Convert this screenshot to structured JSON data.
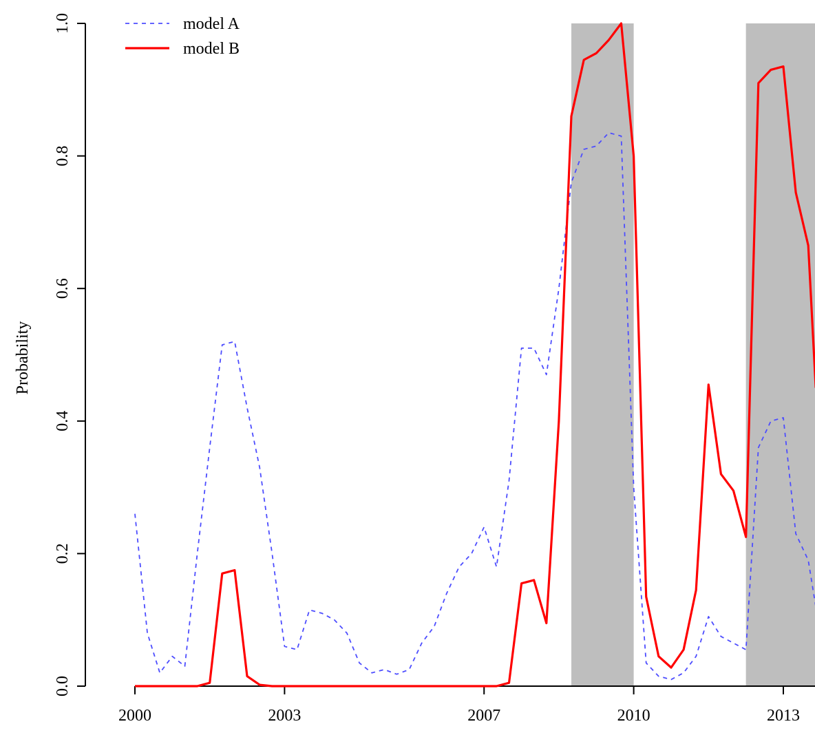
{
  "chart_data": {
    "type": "line",
    "ylabel": "Probability",
    "xlim": [
      2000,
      2013.65
    ],
    "ylim": [
      0,
      1
    ],
    "x_ticks": [
      {
        "label": "2000",
        "value": 2000
      },
      {
        "label": "2003",
        "value": 2003
      },
      {
        "label": "2007",
        "value": 2007
      },
      {
        "label": "2010",
        "value": 2010
      },
      {
        "label": "2013",
        "value": 2013
      }
    ],
    "y_ticks": [
      {
        "label": "0.0",
        "value": 0.0
      },
      {
        "label": "0.2",
        "value": 0.2
      },
      {
        "label": "0.4",
        "value": 0.4
      },
      {
        "label": "0.6",
        "value": 0.6
      },
      {
        "label": "0.8",
        "value": 0.8
      },
      {
        "label": "1.0",
        "value": 1.0
      }
    ],
    "shaded_regions": [
      {
        "start": 2008.75,
        "end": 2010.0
      },
      {
        "start": 2012.25,
        "end": 2013.65
      }
    ],
    "shade_color": "#bebebe",
    "series": [
      {
        "name": "model A",
        "color": "#4d4dff",
        "style": "dashed",
        "points": [
          [
            2000.0,
            0.26
          ],
          [
            2000.25,
            0.08
          ],
          [
            2000.5,
            0.02
          ],
          [
            2000.75,
            0.045
          ],
          [
            2001.0,
            0.03
          ],
          [
            2001.25,
            0.2
          ],
          [
            2001.5,
            0.36
          ],
          [
            2001.75,
            0.515
          ],
          [
            2002.0,
            0.52
          ],
          [
            2002.25,
            0.42
          ],
          [
            2002.5,
            0.33
          ],
          [
            2002.75,
            0.2
          ],
          [
            2003.0,
            0.06
          ],
          [
            2003.25,
            0.055
          ],
          [
            2003.5,
            0.115
          ],
          [
            2003.75,
            0.11
          ],
          [
            2004.0,
            0.1
          ],
          [
            2004.25,
            0.08
          ],
          [
            2004.5,
            0.035
          ],
          [
            2004.75,
            0.02
          ],
          [
            2005.0,
            0.025
          ],
          [
            2005.25,
            0.018
          ],
          [
            2005.5,
            0.025
          ],
          [
            2005.75,
            0.065
          ],
          [
            2006.0,
            0.09
          ],
          [
            2006.25,
            0.14
          ],
          [
            2006.5,
            0.18
          ],
          [
            2006.75,
            0.2
          ],
          [
            2007.0,
            0.24
          ],
          [
            2007.25,
            0.18
          ],
          [
            2007.5,
            0.31
          ],
          [
            2007.75,
            0.51
          ],
          [
            2008.0,
            0.51
          ],
          [
            2008.25,
            0.47
          ],
          [
            2008.5,
            0.6
          ],
          [
            2008.75,
            0.76
          ],
          [
            2009.0,
            0.81
          ],
          [
            2009.25,
            0.815
          ],
          [
            2009.5,
            0.835
          ],
          [
            2009.75,
            0.83
          ],
          [
            2010.0,
            0.3
          ],
          [
            2010.25,
            0.035
          ],
          [
            2010.5,
            0.015
          ],
          [
            2010.75,
            0.01
          ],
          [
            2011.0,
            0.02
          ],
          [
            2011.25,
            0.045
          ],
          [
            2011.5,
            0.105
          ],
          [
            2011.75,
            0.075
          ],
          [
            2012.0,
            0.065
          ],
          [
            2012.25,
            0.055
          ],
          [
            2012.5,
            0.36
          ],
          [
            2012.75,
            0.4
          ],
          [
            2013.0,
            0.405
          ],
          [
            2013.25,
            0.23
          ],
          [
            2013.5,
            0.19
          ],
          [
            2013.65,
            0.12
          ]
        ]
      },
      {
        "name": "model B",
        "color": "#ff0000",
        "style": "solid",
        "points": [
          [
            2000.0,
            0.0
          ],
          [
            2000.25,
            0.0
          ],
          [
            2000.5,
            0.0
          ],
          [
            2000.75,
            0.0
          ],
          [
            2001.0,
            0.0
          ],
          [
            2001.25,
            0.0
          ],
          [
            2001.5,
            0.005
          ],
          [
            2001.75,
            0.17
          ],
          [
            2002.0,
            0.175
          ],
          [
            2002.25,
            0.015
          ],
          [
            2002.5,
            0.002
          ],
          [
            2002.75,
            0.0
          ],
          [
            2003.0,
            0.0
          ],
          [
            2003.5,
            0.0
          ],
          [
            2004.0,
            0.0
          ],
          [
            2004.5,
            0.0
          ],
          [
            2005.0,
            0.0
          ],
          [
            2005.5,
            0.0
          ],
          [
            2006.0,
            0.0
          ],
          [
            2006.5,
            0.0
          ],
          [
            2007.0,
            0.0
          ],
          [
            2007.25,
            0.0
          ],
          [
            2007.5,
            0.005
          ],
          [
            2007.75,
            0.155
          ],
          [
            2008.0,
            0.16
          ],
          [
            2008.25,
            0.095
          ],
          [
            2008.5,
            0.4
          ],
          [
            2008.75,
            0.86
          ],
          [
            2009.0,
            0.945
          ],
          [
            2009.25,
            0.955
          ],
          [
            2009.5,
            0.975
          ],
          [
            2009.75,
            1.0
          ],
          [
            2010.0,
            0.8
          ],
          [
            2010.25,
            0.135
          ],
          [
            2010.5,
            0.045
          ],
          [
            2010.75,
            0.028
          ],
          [
            2011.0,
            0.055
          ],
          [
            2011.25,
            0.145
          ],
          [
            2011.5,
            0.455
          ],
          [
            2011.75,
            0.32
          ],
          [
            2012.0,
            0.295
          ],
          [
            2012.25,
            0.225
          ],
          [
            2012.5,
            0.91
          ],
          [
            2012.75,
            0.93
          ],
          [
            2013.0,
            0.935
          ],
          [
            2013.25,
            0.745
          ],
          [
            2013.5,
            0.665
          ],
          [
            2013.65,
            0.45
          ]
        ]
      }
    ],
    "legend": {
      "placement": "top-left",
      "entries": [
        {
          "label": "model A",
          "color": "#4d4dff",
          "style": "dashed"
        },
        {
          "label": "model B",
          "color": "#ff0000",
          "style": "solid"
        }
      ]
    }
  }
}
